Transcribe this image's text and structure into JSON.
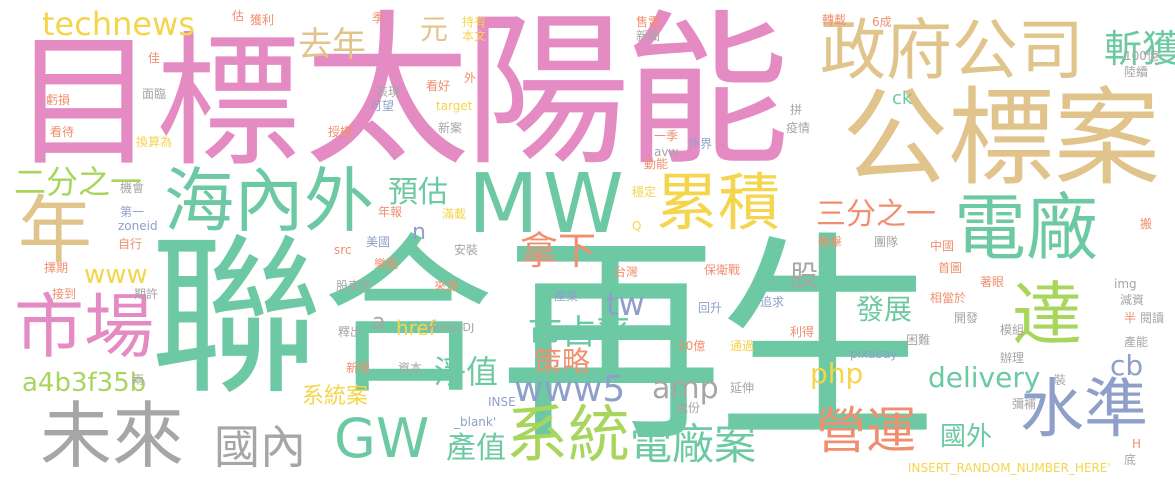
{
  "palette": {
    "pink": "#e58bc4",
    "green": "#6cc9a3",
    "tan": "#e0c48b",
    "orange": "#f08f6f",
    "lime": "#a8d65c",
    "gray": "#a6a6a6",
    "blue": "#8ea0c9",
    "yellow": "#f4d54b"
  },
  "words": {
    "w_lianhe": "聯合",
    "w_zaisheng": "再生",
    "w_mubiao": "目標",
    "w_taiyangneng": "太陽能",
    "w_gongbiaoan": "公標案",
    "w_zhengfu": "政府公司",
    "w_mw": "MW",
    "w_haineiwai": "海內外",
    "w_nian": "年",
    "w_shichang": "市場",
    "w_weilai": "未來",
    "w_gw": "GW",
    "w_xitong": "系統",
    "w_dianchangan": "電廠案",
    "w_dianchang": "電廠",
    "w_leiji": "累積",
    "w_da": "達",
    "w_shuizhun": "水準",
    "w_yingyun": "營運",
    "w_guonei": "國內",
    "w_technews": "technews",
    "w_qunian": "去年",
    "w_yuan": "元",
    "w_zhanhuo": "斬獲",
    "w_erfen": "二分之一",
    "w_sanfen": "三分之一",
    "w_yugu": "預估",
    "w_naxia": "拿下",
    "w_shizhanlv": "市占率",
    "w_celue": "策略",
    "w_jingzhi": "淨值",
    "w_www5": "www5",
    "w_amp": "amp",
    "w_chanzhi": "產值",
    "w_tw": "tw",
    "w_www": "www",
    "w_gu": "股",
    "w_fazhan": "發展",
    "w_php": "php",
    "w_delivery": "delivery",
    "w_cb": "cb",
    "w_guowai": "國外",
    "w_a4b": "a4b3f35b",
    "w_href": "href",
    "w_xitongan": "系統案",
    "w_n": "n",
    "w_a": "a",
    "w_guji": "估",
    "w_huoli": "獲利",
    "w_ji": "季",
    "w_chiyou": "持有",
    "w_benwen": "本文",
    "w_shoudian": "售電",
    "w_xinwen": "新聞",
    "w_zhuanzai": "轉載",
    "w_6cheng": "6成",
    "w_100yi": "100億",
    "w_luxu": "陸續",
    "w_jia": "佳",
    "w_kuisun": "虧損",
    "w_mianlin": "面臨",
    "w_biaoxian": "表現",
    "w_kaohao": "看好",
    "w_wai": "外",
    "w_kewang": "可望",
    "w_target": "target",
    "w_ck": "ck",
    "w_pin": "拼",
    "w_yiqing": "疫情",
    "w_kandai": "看待",
    "w_huansuan": "換算為",
    "w_shouquan": "授權",
    "w_xinan": "新案",
    "w_yiji": "一季",
    "w_avw": "avw",
    "w_dongneng": "動能",
    "w_waijie": "外界",
    "w_jihui": "機會",
    "w_wending": "穩定",
    "w_diyi": "第一",
    "w_zoneid": "zoneid",
    "w_nianbao": "年報",
    "w_manzai": "滿載",
    "w_Q": "Q",
    "w_chongji": "衝擊",
    "w_tuandui": "團隊",
    "w_ban": "搬",
    "w_zixing": "自行",
    "w_src": "src",
    "w_meiguo": "美國",
    "w_anzhuang": "安裝",
    "w_zeqi": "擇期",
    "w_leguan": "樂觀",
    "w_taiwan": "台灣",
    "w_baoweizhan": "保衛戰",
    "w_zhongguo": "中國",
    "w_shoutu": "首圖",
    "w_zhuoyan": "著眼",
    "w_jiedao": "接到",
    "w_qixu": "期許",
    "w_gudonghui": "股東會",
    "w_laiyuan": "來源",
    "w_chanye": "產業",
    "w_zhuiqiu": "追求",
    "w_xiangdangyu": "相當於",
    "w_img": "img",
    "w_jianzi": "減資",
    "w_insert": "INSERT_RANDOM_NUMBER_HERE'",
    "w_moneydj": "MoneyDJ",
    "w_huisheng": "回升",
    "w_kaifa": "開發",
    "w_ban2": "半",
    "w_yuedu": "閱讀",
    "w_shichu": "釋出",
    "w_lide": "利得",
    "w_mozu": "模組",
    "w_kunnan": "困難",
    "w_xinzeng": "新增",
    "w_ziben": "資本",
    "w_50yi": "50億",
    "w_tongguo": "通過",
    "w_pixabay": "pixabay",
    "w_banli": "辦理",
    "w_channeng": "產能",
    "w_zhuang": "裝",
    "w_liang": "兩",
    "w_yanshen": "延伸",
    "w_inse": "INSE",
    "w_blank": "_blank'",
    "w_chufen": "處份",
    "w_mibu": "彌補",
    "w_H": "H",
    "w_di": "底"
  }
}
